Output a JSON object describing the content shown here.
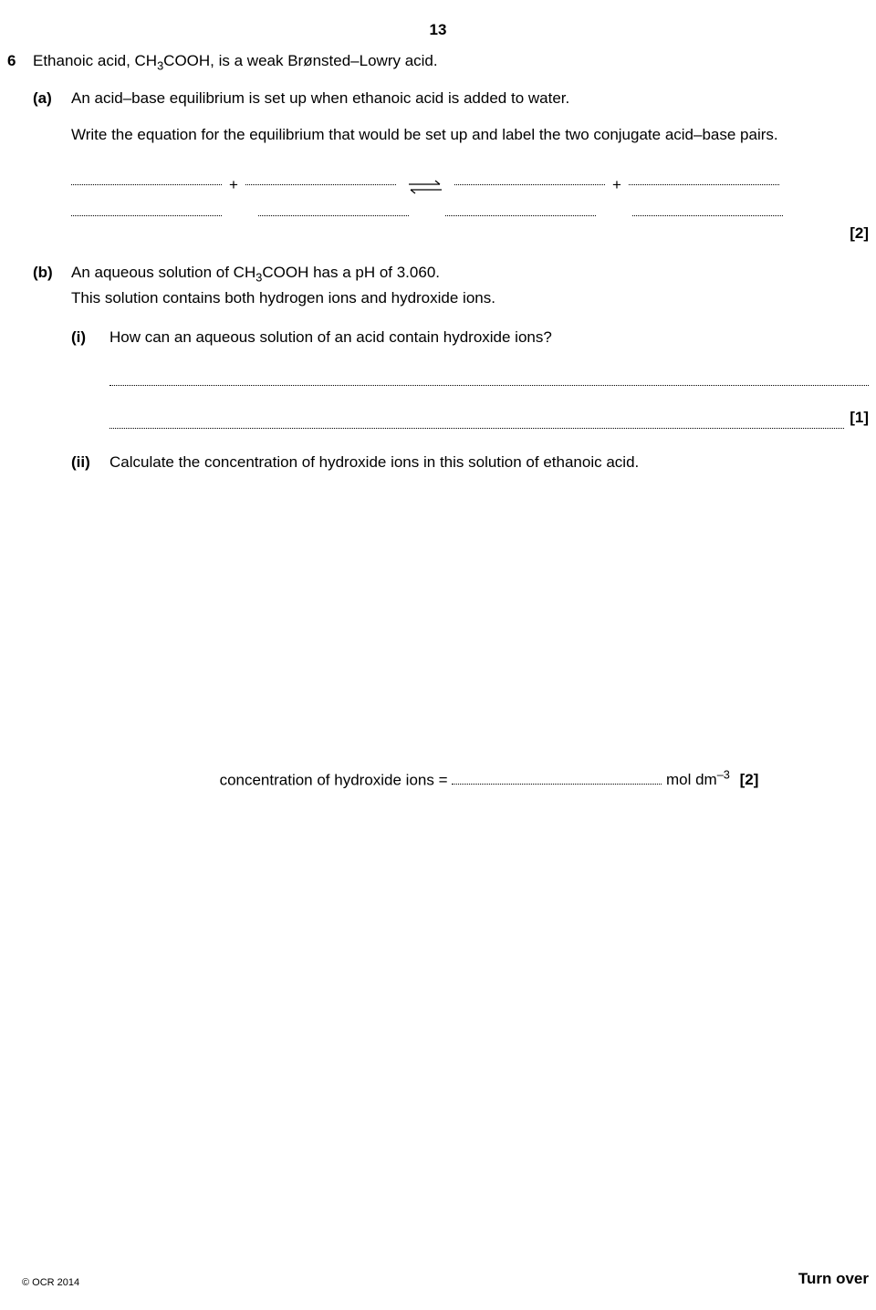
{
  "page_number": "13",
  "question": {
    "number": "6",
    "intro": "Ethanoic acid, CH{sub3}COOH, is a weak Brønsted–Lowry acid.",
    "part_a": {
      "label": "(a)",
      "line1": "An acid–base equilibrium is set up when ethanoic acid is added to water.",
      "line2": "Write the equation for the equilibrium that would be set up and label the two conjugate acid–base pairs.",
      "marks": "[2]"
    },
    "part_b": {
      "label": "(b)",
      "line1": "An aqueous solution of CH{sub3}COOH has a pH of 3.060.",
      "line2": "This solution contains both hydrogen ions and hydroxide ions.",
      "sub_i": {
        "label": "(i)",
        "text": "How can an aqueous solution of an acid contain hydroxide ions?",
        "marks": "[1]"
      },
      "sub_ii": {
        "label": "(ii)",
        "text": "Calculate the concentration of hydroxide ions in this solution of ethanoic acid.",
        "answer_label": "concentration of hydroxide ions = ",
        "unit": "mol dm{sup-3}",
        "marks": "[2]"
      }
    }
  },
  "footer": {
    "copyright": "© OCR 2014",
    "turn_over": "Turn over"
  }
}
